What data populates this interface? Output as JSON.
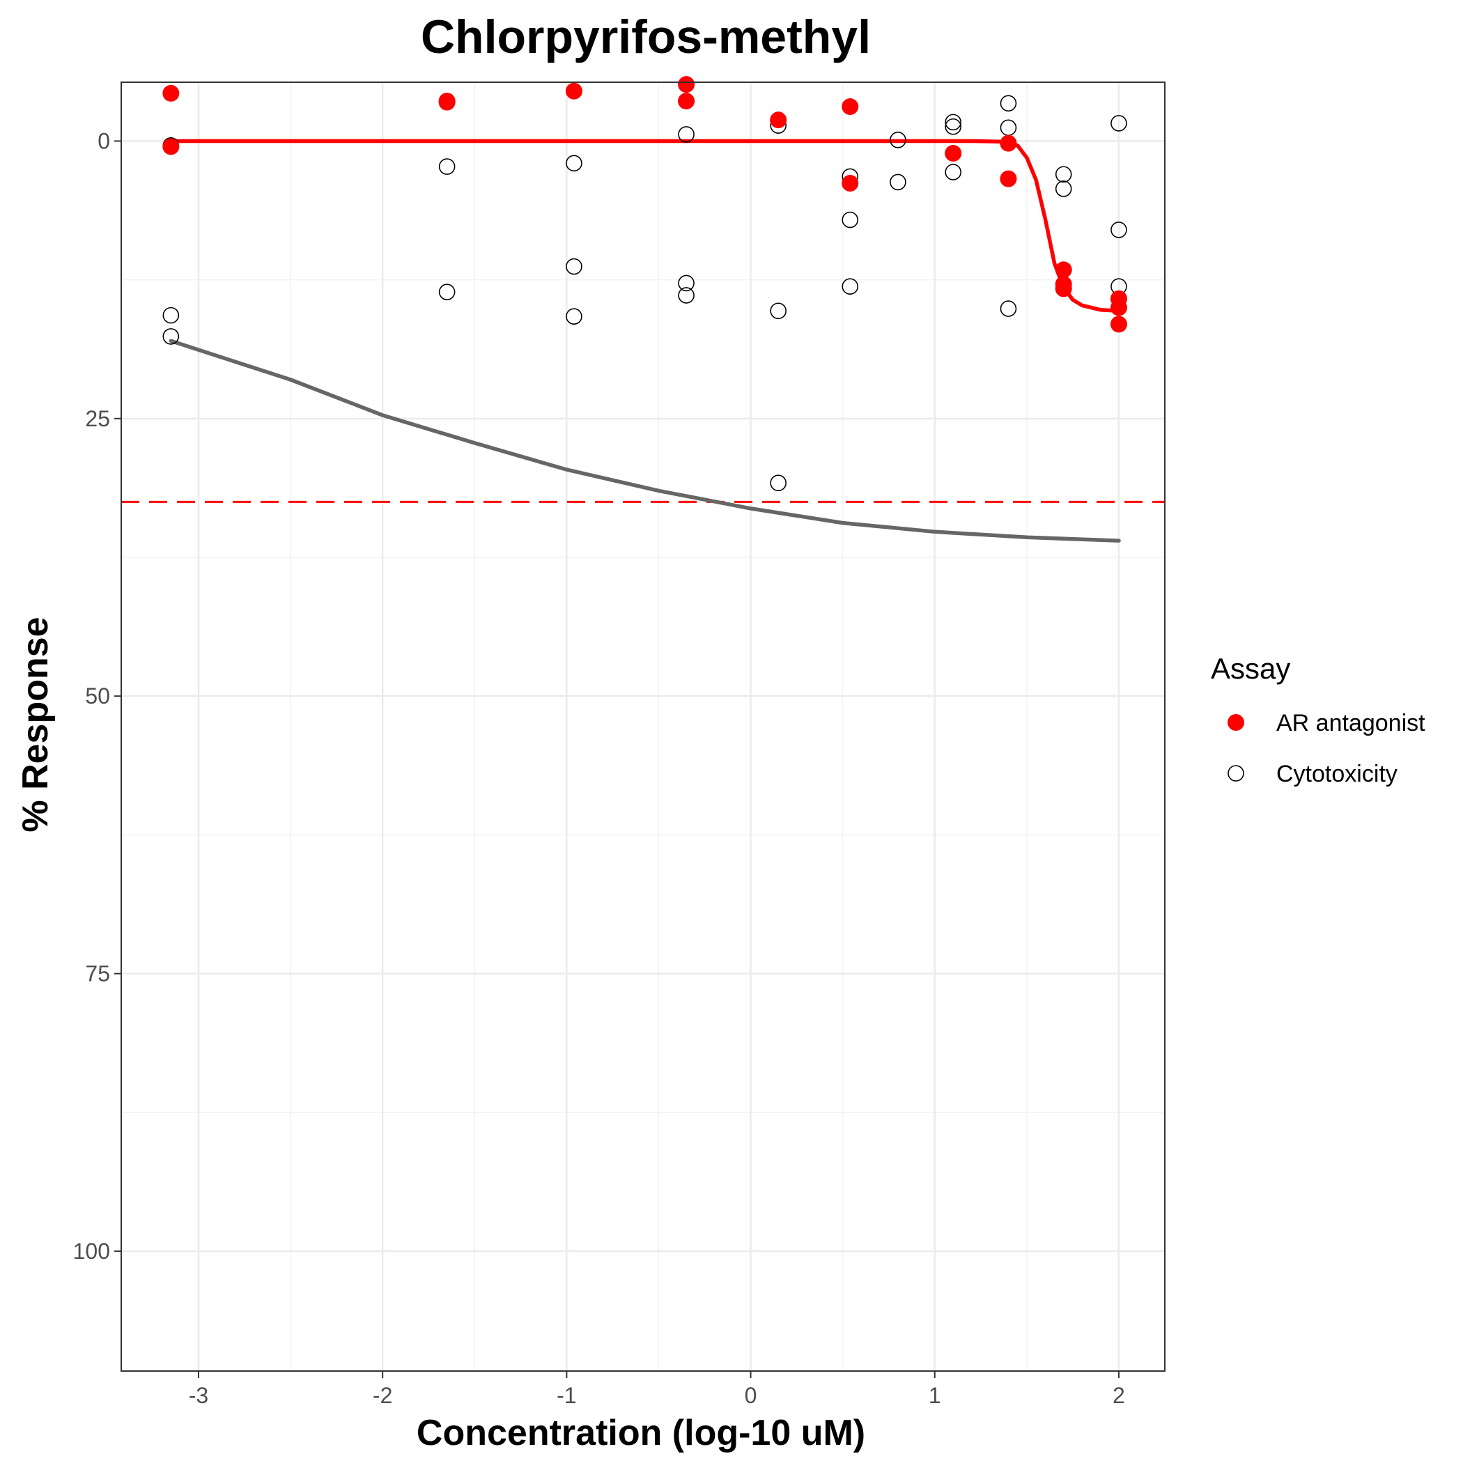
{
  "chart_data": {
    "type": "scatter",
    "title": "Chlorpyrifos-methyl",
    "xlabel": "Concentration (log-10 uM)",
    "ylabel": "% Response",
    "xlim": [
      -3.42,
      2.25
    ],
    "ylim": [
      110.8,
      -5.3
    ],
    "y_reversed": true,
    "grid": true,
    "x_ticks": [
      -3,
      -2,
      -1,
      0,
      1,
      2
    ],
    "y_ticks": [
      0,
      25,
      50,
      75,
      100
    ],
    "legend": {
      "title": "Assay",
      "position": "right",
      "entries": [
        "AR antagonist",
        "Cytotoxicity"
      ]
    },
    "threshold": {
      "y": 32.5,
      "color": "#ff0000",
      "style": "dashed"
    },
    "series": [
      {
        "name": "AR antagonist",
        "color": "#ff0000",
        "marker": "filled-circle",
        "points": [
          [
            -3.15,
            -4.3
          ],
          [
            -3.15,
            0.5
          ],
          [
            -1.65,
            -3.6
          ],
          [
            -1.65,
            -3.5
          ],
          [
            -0.96,
            -4.5
          ],
          [
            -0.35,
            -5.1
          ],
          [
            -0.35,
            -3.6
          ],
          [
            0.15,
            -1.9
          ],
          [
            0.54,
            -3.1
          ],
          [
            0.54,
            3.8
          ],
          [
            1.1,
            1.1
          ],
          [
            1.4,
            0.2
          ],
          [
            1.4,
            3.4
          ],
          [
            1.7,
            11.6
          ],
          [
            1.7,
            12.9
          ],
          [
            1.7,
            13.3
          ],
          [
            2.0,
            14.2
          ],
          [
            2.0,
            15.0
          ],
          [
            2.0,
            16.5
          ]
        ],
        "fit": [
          [
            -3.15,
            0.0
          ],
          [
            1.2,
            0.0
          ],
          [
            1.35,
            0.05
          ],
          [
            1.45,
            0.4
          ],
          [
            1.5,
            1.5
          ],
          [
            1.55,
            3.5
          ],
          [
            1.6,
            7.0
          ],
          [
            1.65,
            11.0
          ],
          [
            1.7,
            13.2
          ],
          [
            1.75,
            14.3
          ],
          [
            1.8,
            14.8
          ],
          [
            1.9,
            15.2
          ],
          [
            2.0,
            15.3
          ]
        ]
      },
      {
        "name": "Cytotoxicity",
        "color": "#000000",
        "marker": "open-circle",
        "points": [
          [
            -3.15,
            0.4
          ],
          [
            -3.15,
            15.7
          ],
          [
            -3.15,
            17.6
          ],
          [
            -1.65,
            -3.6
          ],
          [
            -1.65,
            2.3
          ],
          [
            -1.65,
            13.6
          ],
          [
            -0.96,
            2.0
          ],
          [
            -0.96,
            11.3
          ],
          [
            -0.96,
            15.8
          ],
          [
            -0.35,
            -0.6
          ],
          [
            -0.35,
            12.8
          ],
          [
            -0.35,
            13.9
          ],
          [
            0.15,
            -1.4
          ],
          [
            0.15,
            15.3
          ],
          [
            0.15,
            30.8
          ],
          [
            0.54,
            3.2
          ],
          [
            0.54,
            7.1
          ],
          [
            0.54,
            13.1
          ],
          [
            0.8,
            -0.1
          ],
          [
            0.8,
            3.7
          ],
          [
            1.1,
            -1.7
          ],
          [
            1.1,
            -1.3
          ],
          [
            1.1,
            2.8
          ],
          [
            1.4,
            -3.4
          ],
          [
            1.4,
            -1.2
          ],
          [
            1.4,
            15.1
          ],
          [
            1.7,
            3.0
          ],
          [
            1.7,
            4.3
          ],
          [
            2.0,
            -1.6
          ],
          [
            2.0,
            8.0
          ],
          [
            2.0,
            13.1
          ]
        ],
        "fit": [
          [
            -3.15,
            18.0
          ],
          [
            -2.5,
            21.5
          ],
          [
            -2.0,
            24.7
          ],
          [
            -1.5,
            27.2
          ],
          [
            -1.0,
            29.6
          ],
          [
            -0.5,
            31.5
          ],
          [
            0.0,
            33.1
          ],
          [
            0.5,
            34.4
          ],
          [
            1.0,
            35.2
          ],
          [
            1.5,
            35.7
          ],
          [
            2.0,
            36.0
          ]
        ],
        "fit_color": "#666666"
      }
    ]
  }
}
